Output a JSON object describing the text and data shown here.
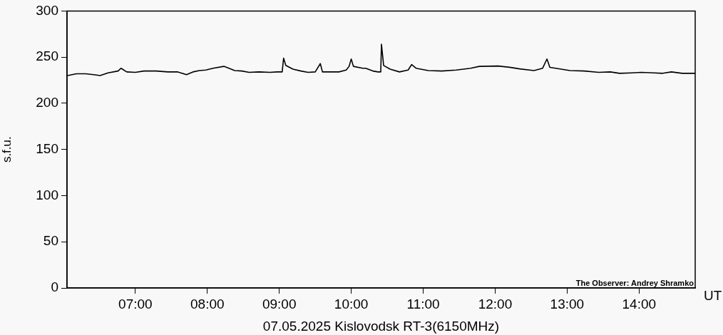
{
  "chart_data": {
    "type": "line",
    "xlabel": "07.05.2025 Kislovodsk RT-3(6150MHz)",
    "ylabel": "s.f.u.",
    "annotations": [
      "The Observer: Andrey Shramko",
      "UT"
    ],
    "x": [
      6.06,
      6.18,
      6.31,
      6.42,
      6.51,
      6.62,
      6.76,
      6.8,
      6.88,
      7.0,
      7.12,
      7.29,
      7.45,
      7.59,
      7.71,
      7.8,
      7.89,
      7.98,
      8.08,
      8.23,
      8.3,
      8.38,
      8.48,
      8.58,
      8.72,
      8.87,
      8.97,
      9.04,
      9.06,
      9.09,
      9.19,
      9.3,
      9.4,
      9.5,
      9.57,
      9.6,
      9.7,
      9.83,
      9.93,
      9.97,
      10.0,
      10.03,
      10.16,
      10.2,
      10.3,
      10.37,
      10.41,
      10.42,
      10.45,
      10.54,
      10.67,
      10.79,
      10.84,
      10.9,
      11.07,
      11.26,
      11.46,
      11.66,
      11.78,
      12.04,
      12.2,
      12.34,
      12.54,
      12.66,
      12.72,
      12.76,
      12.84,
      13.04,
      13.24,
      13.44,
      13.6,
      13.73,
      13.9,
      14.03,
      14.2,
      14.33,
      14.45,
      14.6,
      14.78
    ],
    "series": [
      {
        "color": "#000000",
        "values": [
          230,
          232,
          232,
          231,
          230,
          233,
          235,
          238,
          234,
          233.5,
          235,
          235,
          234,
          234,
          231,
          234,
          235.5,
          236,
          238,
          240,
          238,
          235.5,
          235,
          233.5,
          234,
          233.5,
          234,
          234,
          249,
          241,
          237,
          235,
          233.5,
          234,
          243,
          234,
          234,
          234,
          236,
          240,
          248,
          240,
          238,
          238,
          235,
          234,
          234,
          264,
          241,
          237,
          234,
          236,
          242,
          238,
          235.5,
          235,
          236,
          238,
          240,
          240.4,
          239,
          237.3,
          235.5,
          238,
          248,
          239,
          238,
          235.5,
          235,
          233.5,
          234,
          232.5,
          233,
          233.5,
          233,
          232.5,
          234,
          232.5,
          232.5
        ]
      }
    ],
    "xlim": [
      6.05,
      14.78
    ],
    "xticks": [
      {
        "value": 7,
        "label": "07:00"
      },
      {
        "value": 8,
        "label": "08:00"
      },
      {
        "value": 9,
        "label": "09:00"
      },
      {
        "value": 10,
        "label": "10:00"
      },
      {
        "value": 11,
        "label": "11:00"
      },
      {
        "value": 12,
        "label": "12:00"
      },
      {
        "value": 13,
        "label": "13:00"
      },
      {
        "value": 14,
        "label": "14:00"
      }
    ],
    "ylim": [
      0,
      300
    ],
    "yticks": [
      0,
      50,
      100,
      150,
      200,
      250,
      300
    ],
    "grid": false,
    "legend": false,
    "marker": "none",
    "line_style": "solid"
  }
}
